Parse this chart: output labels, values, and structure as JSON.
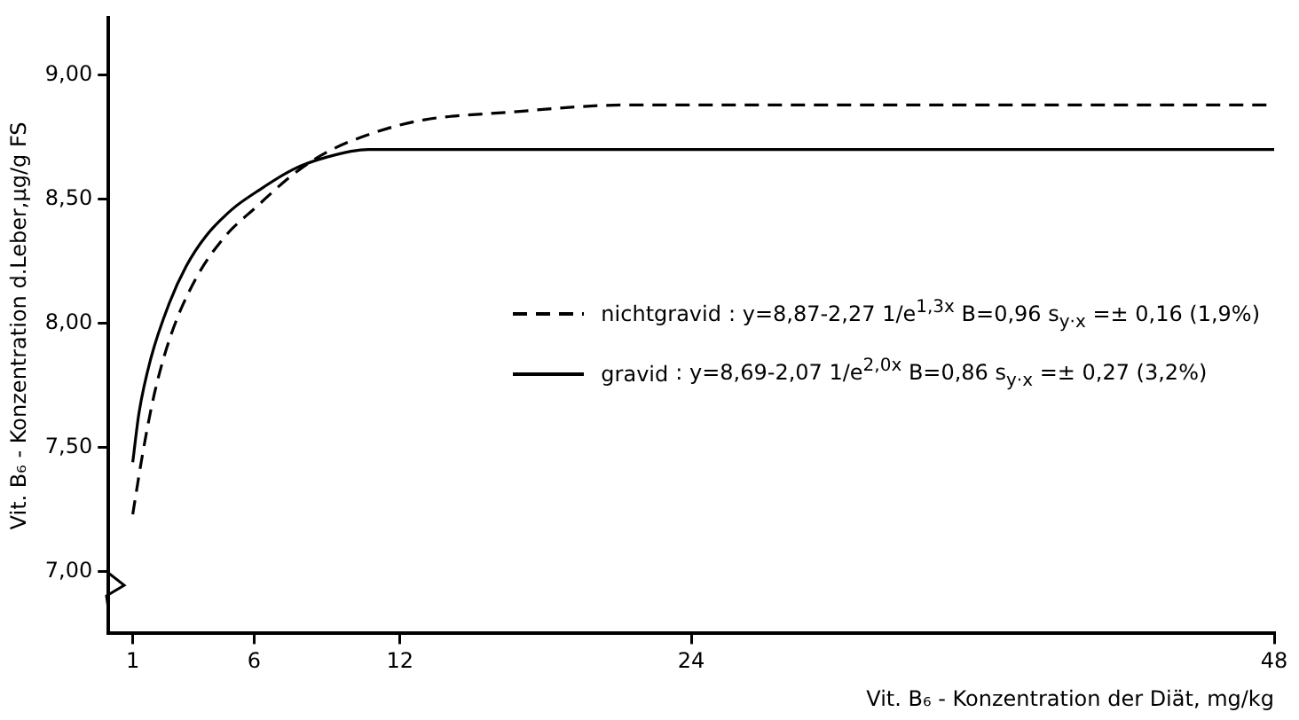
{
  "chart_data": {
    "type": "line",
    "xlabel": "Vit. B₆ - Konzentration der Diät, mg/kg",
    "ylabel": "Vit. B₆ - Konzentration d.Leber,µg/g FS",
    "xlim": [
      0,
      48
    ],
    "xticks": [
      1,
      6,
      12,
      24,
      48
    ],
    "ylim": [
      6.75,
      9.23
    ],
    "yticks": [
      {
        "value": 7,
        "label": "7,00"
      },
      {
        "value": 7.5,
        "label": "7,50"
      },
      {
        "value": 8,
        "label": "8,00"
      },
      {
        "value": 8.5,
        "label": "8,50"
      },
      {
        "value": 9,
        "label": "9,00"
      }
    ],
    "grid": false,
    "legend": "center",
    "marker": "none",
    "series": [
      {
        "name": "nichtgravid",
        "color": "#000000",
        "line_style": "dashed",
        "x": [
          1,
          1.4,
          1.9,
          2.6,
          3.6,
          4.8,
          6.1,
          7.6,
          9,
          11,
          13,
          16.4,
          21.4,
          30,
          40,
          48
        ],
        "values": [
          7.23,
          7.47,
          7.72,
          7.96,
          8.18,
          8.35,
          8.47,
          8.6,
          8.69,
          8.77,
          8.82,
          8.85,
          8.88,
          8.88,
          8.88,
          8.88
        ]
      },
      {
        "name": "gravid",
        "color": "#000000",
        "line_style": "solid",
        "x": [
          1,
          1.26,
          1.75,
          2.5,
          3.2,
          4,
          5.1,
          6.1,
          7.6,
          9,
          10.7,
          13,
          24,
          48
        ],
        "values": [
          7.44,
          7.64,
          7.86,
          8.08,
          8.23,
          8.35,
          8.46,
          8.53,
          8.62,
          8.67,
          8.7,
          8.7,
          8.7,
          8.7
        ]
      }
    ],
    "annotations": [
      ": y=8,87-2,27 1/e$^{1,3x}$   B=0,96   s$_{y·x}$ =± 0,16 (1,9%)",
      ": y=8,69-2,07 1/e$^{2,0x}$   B=0,86   s$_{y·x}$ =± 0,27 (3,2%)"
    ]
  }
}
